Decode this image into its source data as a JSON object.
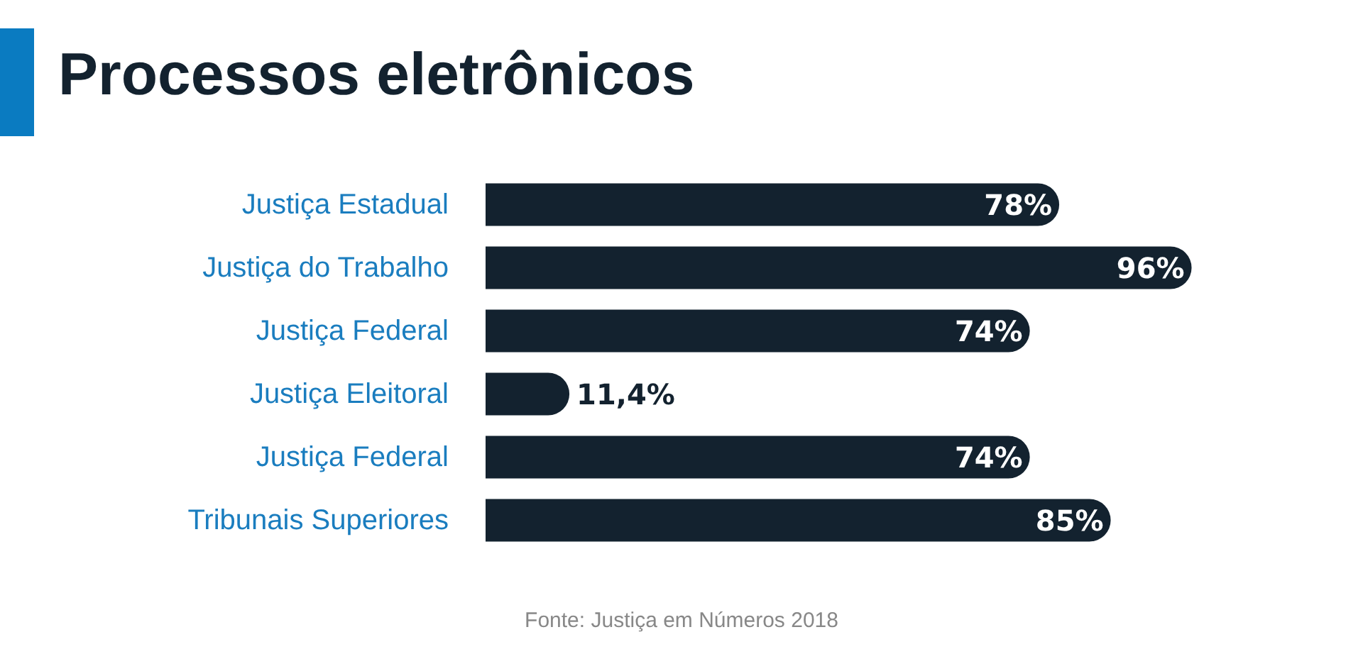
{
  "chart_data": {
    "type": "bar",
    "orientation": "horizontal",
    "title": "Processos eletrônicos",
    "categories": [
      "Justiça Estadual",
      "Justiça do Trabalho",
      "Justiça Federal",
      "Justiça Eleitoral",
      "Justiça Federal",
      "Tribunais Superiores"
    ],
    "values": [
      78,
      96,
      74,
      11.4,
      74,
      85
    ],
    "value_labels": [
      "78%",
      "96%",
      "74%",
      "11,4%",
      "74%",
      "85%"
    ],
    "color": "#13222f",
    "annotations": [
      "Fonte: Justiça em Números 2018"
    ]
  }
}
